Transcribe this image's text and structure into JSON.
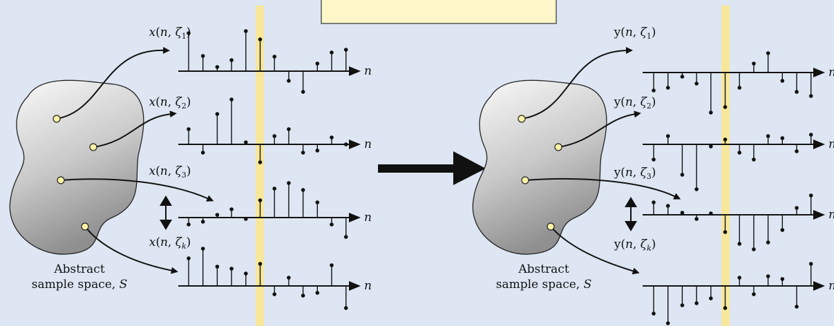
{
  "colors": {
    "background": "#dde6f2",
    "highlight_band": "#f6e79a",
    "caption_box": "#fcf6c8",
    "marker_fill": "#fff3a6",
    "ink": "#111111"
  },
  "left_panel": {
    "caption_line1": "Abstract",
    "caption_line2": "sample space, ",
    "caption_symbol": "S",
    "axis_label": "n",
    "rows": [
      {
        "label_fn": "x",
        "label_open": "(",
        "label_n": "n",
        "label_sep": ", ",
        "label_zeta": "ζ",
        "label_sub": "1",
        "label_close": ")",
        "samples": [
          55,
          22,
          6,
          16,
          58,
          46,
          21,
          -14,
          -30,
          11,
          27,
          31
        ]
      },
      {
        "label_fn": "x",
        "label_open": "(",
        "label_n": "n",
        "label_sep": ", ",
        "label_zeta": "ζ",
        "label_sub": "2",
        "label_close": ")",
        "samples": [
          22,
          -12,
          44,
          65,
          3,
          -26,
          12,
          22,
          -12,
          -9,
          10,
          0
        ]
      },
      {
        "label_fn": "x",
        "label_open": "(",
        "label_n": "n",
        "label_sep": ", ",
        "label_zeta": "ζ",
        "label_sub": "3",
        "label_close": ")",
        "samples": [
          -10,
          -6,
          4,
          12,
          -2,
          25,
          42,
          50,
          40,
          22,
          -10,
          -28
        ]
      },
      {
        "label_fn": "x",
        "label_open": "(",
        "label_n": "n",
        "label_sep": ", ",
        "label_zeta": "ζ",
        "label_sub": "k",
        "label_close": ")",
        "samples": [
          40,
          54,
          28,
          25,
          18,
          32,
          -12,
          12,
          -14,
          -10,
          30,
          -32
        ]
      }
    ]
  },
  "right_panel": {
    "caption_line1": "Abstract",
    "caption_line2": "sample space, ",
    "caption_symbol": "S",
    "axis_label": "n",
    "rows": [
      {
        "label_fn": "y",
        "label_open": "(",
        "label_n": "n",
        "label_sep": ", ",
        "label_zeta": "ζ",
        "label_sub": "1",
        "label_close": ")",
        "samples": [
          -26,
          -22,
          -6,
          -16,
          -58,
          -50,
          -22,
          13,
          28,
          -12,
          -28,
          -34
        ]
      },
      {
        "label_fn": "y",
        "label_open": "(",
        "label_n": "n",
        "label_sep": ", ",
        "label_zeta": "ζ",
        "label_sub": "2",
        "label_close": ")",
        "samples": [
          -22,
          12,
          -44,
          -65,
          -3,
          7,
          -12,
          -22,
          12,
          9,
          -10,
          14
        ]
      },
      {
        "label_fn": "y",
        "label_open": "(",
        "label_n": "n",
        "label_sep": ", ",
        "label_zeta": "ζ",
        "label_sub": "3",
        "label_close": ")",
        "samples": [
          18,
          13,
          3,
          -6,
          2,
          -25,
          -42,
          -50,
          -40,
          -22,
          10,
          28
        ]
      },
      {
        "label_fn": "y",
        "label_open": "(",
        "label_n": "n",
        "label_sep": ", ",
        "label_zeta": "ζ",
        "label_sub": "k",
        "label_close": ")",
        "samples": [
          -40,
          -54,
          -28,
          -25,
          -18,
          -32,
          12,
          -12,
          14,
          10,
          -30,
          32
        ]
      }
    ]
  }
}
